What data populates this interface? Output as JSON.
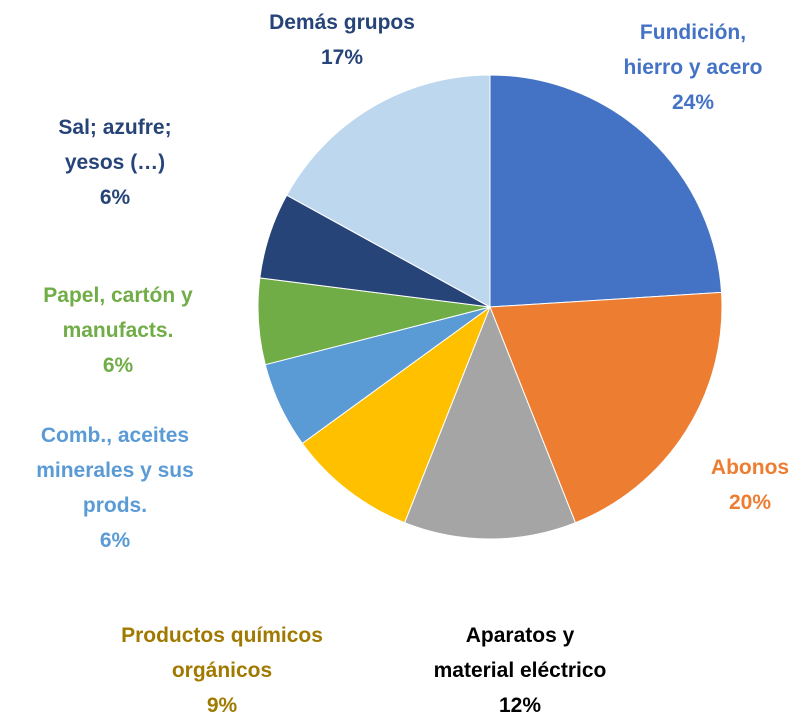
{
  "chart_data": {
    "type": "pie",
    "categories": [
      "Fundición, hierro y acero",
      "Abonos",
      "Aparatos y material eléctrico",
      "Productos químicos orgánicos",
      "Comb., aceites minerales y sus prods.",
      "Papel, cartón y manufacts.",
      "Sal; azufre; yesos (…)",
      "Demás grupos"
    ],
    "values": [
      24,
      20,
      12,
      9,
      6,
      6,
      6,
      17
    ],
    "value_labels": [
      "24%",
      "20%",
      "12%",
      "9%",
      "6%",
      "6%",
      "6%",
      "17%"
    ],
    "colors": [
      "#4472c4",
      "#ed7d31",
      "#a5a5a5",
      "#ffc000",
      "#5b9bd5",
      "#70ad47",
      "#264478",
      "#bdd7ee"
    ],
    "label_colors": [
      "#4472c4",
      "#ed7d31",
      "#000000",
      "#a07a00",
      "#5b9bd5",
      "#70ad47",
      "#264478",
      "#264478"
    ]
  }
}
